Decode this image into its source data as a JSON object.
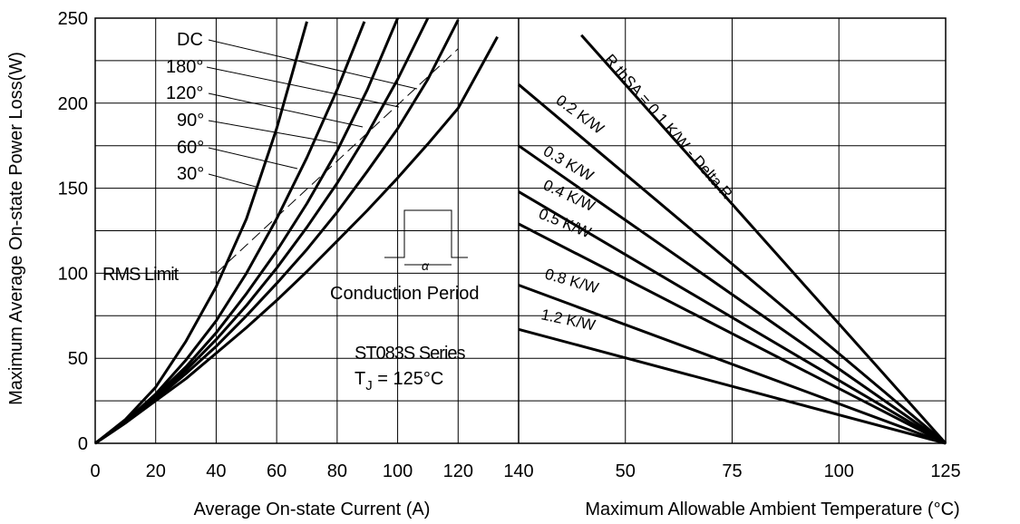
{
  "chart_data": {
    "type": "line",
    "ylabel": "Maximum Average On-state Power Loss(W)",
    "ylim": [
      0,
      250
    ],
    "yticks": [
      "0",
      "50",
      "100",
      "150",
      "200",
      "250"
    ],
    "grid": true,
    "left_panel": {
      "xlabel": "Average On-state Current (A)",
      "xlim": [
        0,
        140
      ],
      "xticks": [
        "0",
        "20",
        "40",
        "60",
        "80",
        "100",
        "120",
        "140"
      ],
      "series": [
        {
          "name": "30°",
          "x": [
            0,
            10,
            20,
            30,
            40,
            50,
            60,
            70
          ],
          "y": [
            0,
            14,
            33,
            60,
            92,
            132,
            185,
            248
          ]
        },
        {
          "name": "60°",
          "x": [
            0,
            10,
            20,
            30,
            40,
            50,
            60,
            70,
            80,
            89
          ],
          "y": [
            0,
            13,
            29,
            49,
            72,
            100,
            132,
            168,
            208,
            248
          ]
        },
        {
          "name": "90°",
          "x": [
            0,
            10,
            20,
            30,
            40,
            50,
            60,
            70,
            80,
            90,
            100
          ],
          "y": [
            0,
            13,
            28,
            45,
            65,
            88,
            113,
            141,
            172,
            208,
            250
          ]
        },
        {
          "name": "120°",
          "x": [
            0,
            10,
            20,
            30,
            40,
            50,
            60,
            70,
            80,
            90,
            100,
            110
          ],
          "y": [
            0,
            13,
            27,
            43,
            61,
            81,
            103,
            127,
            153,
            182,
            214,
            250
          ]
        },
        {
          "name": "180°",
          "x": [
            0,
            10,
            20,
            30,
            40,
            50,
            60,
            70,
            80,
            90,
            100,
            110,
            120
          ],
          "y": [
            0,
            12,
            26,
            41,
            57,
            75,
            94,
            114,
            136,
            160,
            185,
            214,
            249
          ]
        },
        {
          "name": "DC",
          "x": [
            0,
            10,
            20,
            30,
            40,
            50,
            60,
            70,
            80,
            90,
            100,
            110,
            120,
            133
          ],
          "y": [
            0,
            12,
            25,
            38,
            53,
            68,
            84,
            101,
            119,
            137,
            156,
            176,
            197,
            239
          ]
        }
      ],
      "rms_limit": {
        "name": "RMS Limit",
        "x": [
          40,
          60,
          80,
          100,
          120
        ],
        "y": [
          100,
          133,
          166,
          199,
          232
        ]
      },
      "inset_label": "Conduction Period",
      "inset_symbol": "α",
      "series_label": "ST083S Series",
      "tj_label_prefix": "T",
      "tj_label_sub": "J",
      "tj_label_rest": " = 125°C"
    },
    "right_panel": {
      "xlabel": "Maximum Allowable Ambient Temperature (°C)",
      "xlim": [
        25,
        125
      ],
      "xticks": [
        "50",
        "75",
        "100",
        "125"
      ],
      "lines": [
        {
          "label": "R thSA = 0.1 K/W - Delta R",
          "x": [
            39.7,
            125
          ],
          "y": [
            240,
            0
          ]
        },
        {
          "label": "0.2 K/W",
          "x": [
            25,
            125
          ],
          "y": [
            211,
            0
          ]
        },
        {
          "label": "0.3 K/W",
          "x": [
            25,
            125
          ],
          "y": [
            175,
            0
          ]
        },
        {
          "label": "0.4 K/W",
          "x": [
            25,
            125
          ],
          "y": [
            148,
            0
          ]
        },
        {
          "label": "0.5 K/W",
          "x": [
            25,
            125
          ],
          "y": [
            129,
            0
          ]
        },
        {
          "label": "0.8 K/W",
          "x": [
            25,
            125
          ],
          "y": [
            93,
            0
          ]
        },
        {
          "label": "1.2 K/W",
          "x": [
            25,
            125
          ],
          "y": [
            67,
            0
          ]
        }
      ]
    }
  }
}
